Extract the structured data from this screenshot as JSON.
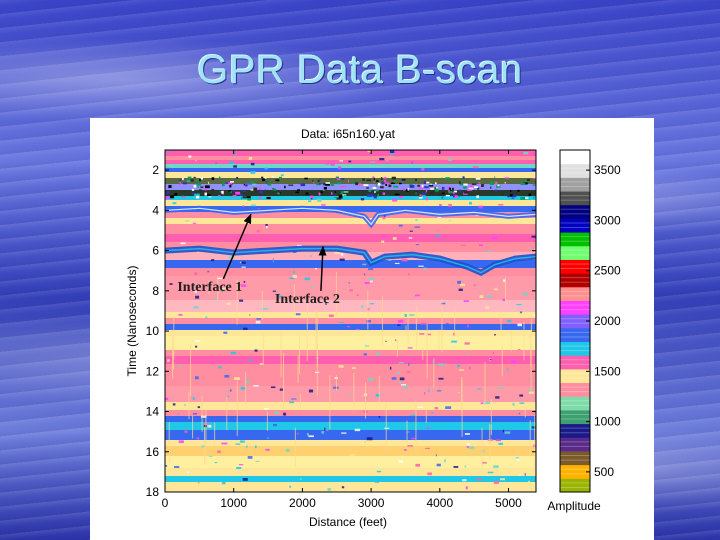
{
  "slide": {
    "title": "GPR Data B-scan"
  },
  "chart_data": {
    "type": "heatmap",
    "title": "Data:  i65n160.yat",
    "xlabel": "Distance (feet)",
    "ylabel": "Time (Nanoseconds)",
    "xlim": [
      0,
      5400
    ],
    "ylim": [
      18,
      1
    ],
    "x_ticks": [
      "0",
      "1000",
      "2000",
      "3000",
      "4000",
      "5000"
    ],
    "y_ticks": [
      "2",
      "4",
      "6",
      "8",
      "10",
      "12",
      "14",
      "16",
      "18"
    ],
    "annotations": [
      {
        "text": "Interface 1",
        "arrow_to": {
          "x": 1250,
          "y": 4.2
        },
        "label_at": {
          "x": 180,
          "y": 8.0
        }
      },
      {
        "text": "Interface 2",
        "arrow_to": {
          "x": 2300,
          "y": 5.8
        },
        "label_at": {
          "x": 1600,
          "y": 8.6
        }
      }
    ],
    "colorbar": {
      "label": "Amplitude",
      "range": [
        300,
        3700
      ],
      "ticks": [
        "500",
        "1000",
        "1500",
        "2000",
        "2500",
        "3000",
        "3500"
      ],
      "colors": [
        "#9bb400",
        "#ffb300",
        "#7c5a2c",
        "#5a2a8a",
        "#1a1a8a",
        "#3ea070",
        "#7fdcaa",
        "#ff8fa0",
        "#ffe79a",
        "#ff5fae",
        "#20c8e8",
        "#3868f0",
        "#8060ff",
        "#ff40ff",
        "#ff9090",
        "#b00000",
        "#ff0000",
        "#70ff70",
        "#00c000",
        "#0000c0",
        "#000080",
        "#505050",
        "#a0a0a0",
        "#e0e0e0",
        "#ffffff"
      ]
    }
  }
}
